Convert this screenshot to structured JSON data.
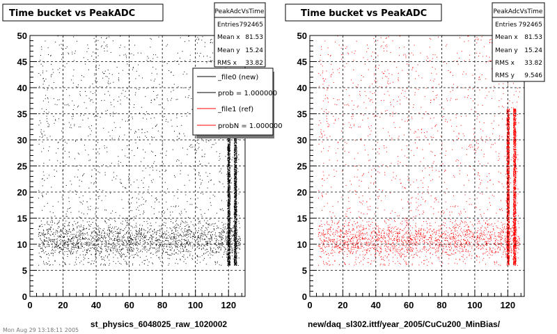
{
  "chart_data": [
    {
      "type": "scatter",
      "title": "Time bucket vs PeakADC",
      "xlabel": "st_physics_6048025_raw_1020002",
      "ylabel": "",
      "xlim": [
        0,
        130
      ],
      "ylim": [
        0,
        50
      ],
      "x_ticks": [
        "0",
        "20",
        "40",
        "60",
        "80",
        "100",
        "120"
      ],
      "y_ticks": [
        "0",
        "5",
        "10",
        "15",
        "20",
        "25",
        "30",
        "35",
        "40",
        "45",
        "50"
      ],
      "grid": true,
      "color": "#000000",
      "stats": {
        "name": "PeakAdcVsTime",
        "rows": [
          {
            "label": "Entries",
            "value": "792465"
          },
          {
            "label": "Mean x",
            "value": "81.53"
          },
          {
            "label": "Mean y",
            "value": "15.24"
          },
          {
            "label": "RMS x",
            "value": "33.82"
          }
        ]
      },
      "legend": {
        "placement": "top-right",
        "entries": [
          {
            "label": "_file0 (new)",
            "color": "#000000"
          },
          {
            "label": "prob = 1.000000",
            "color": "#000000"
          },
          {
            "label": "_file1 (ref)",
            "color": "#ff0000"
          },
          {
            "label": "probN = 1.000000",
            "color": "#ff0000"
          }
        ]
      },
      "density": {
        "x_range": [
          5,
          127
        ],
        "y_range": [
          6,
          50
        ],
        "band": {
          "y_center": 11,
          "y_halfwidth": 4,
          "weight": 0.5
        },
        "dense_lines_x": [
          120,
          124
        ]
      }
    },
    {
      "type": "scatter",
      "title": "Time bucket vs PeakADC",
      "xlabel": "new/daq_sl302.ittf/year_2005/CuCu200_MinBias/",
      "ylabel": "",
      "xlim": [
        0,
        130
      ],
      "ylim": [
        0,
        50
      ],
      "x_ticks": [
        "0",
        "20",
        "40",
        "60",
        "80",
        "100",
        "120"
      ],
      "y_ticks": [
        "0",
        "5",
        "10",
        "15",
        "20",
        "25",
        "30",
        "35",
        "40",
        "45",
        "50"
      ],
      "grid": true,
      "color": "#ff0000",
      "stats": {
        "name": "PeakAdcVsTime",
        "rows": [
          {
            "label": "Entries",
            "value": "792465"
          },
          {
            "label": "Mean x",
            "value": "81.53"
          },
          {
            "label": "Mean y",
            "value": "15.24"
          },
          {
            "label": "RMS x",
            "value": "33.82"
          },
          {
            "label": "RMS y",
            "value": "9.546"
          }
        ]
      },
      "density": {
        "x_range": [
          5,
          127
        ],
        "y_range": [
          6,
          50
        ],
        "band": {
          "y_center": 11,
          "y_halfwidth": 4,
          "weight": 0.5
        },
        "dense_lines_x": [
          120,
          124
        ]
      }
    }
  ],
  "footer": "Mon Aug 29 13:18:11 2005"
}
